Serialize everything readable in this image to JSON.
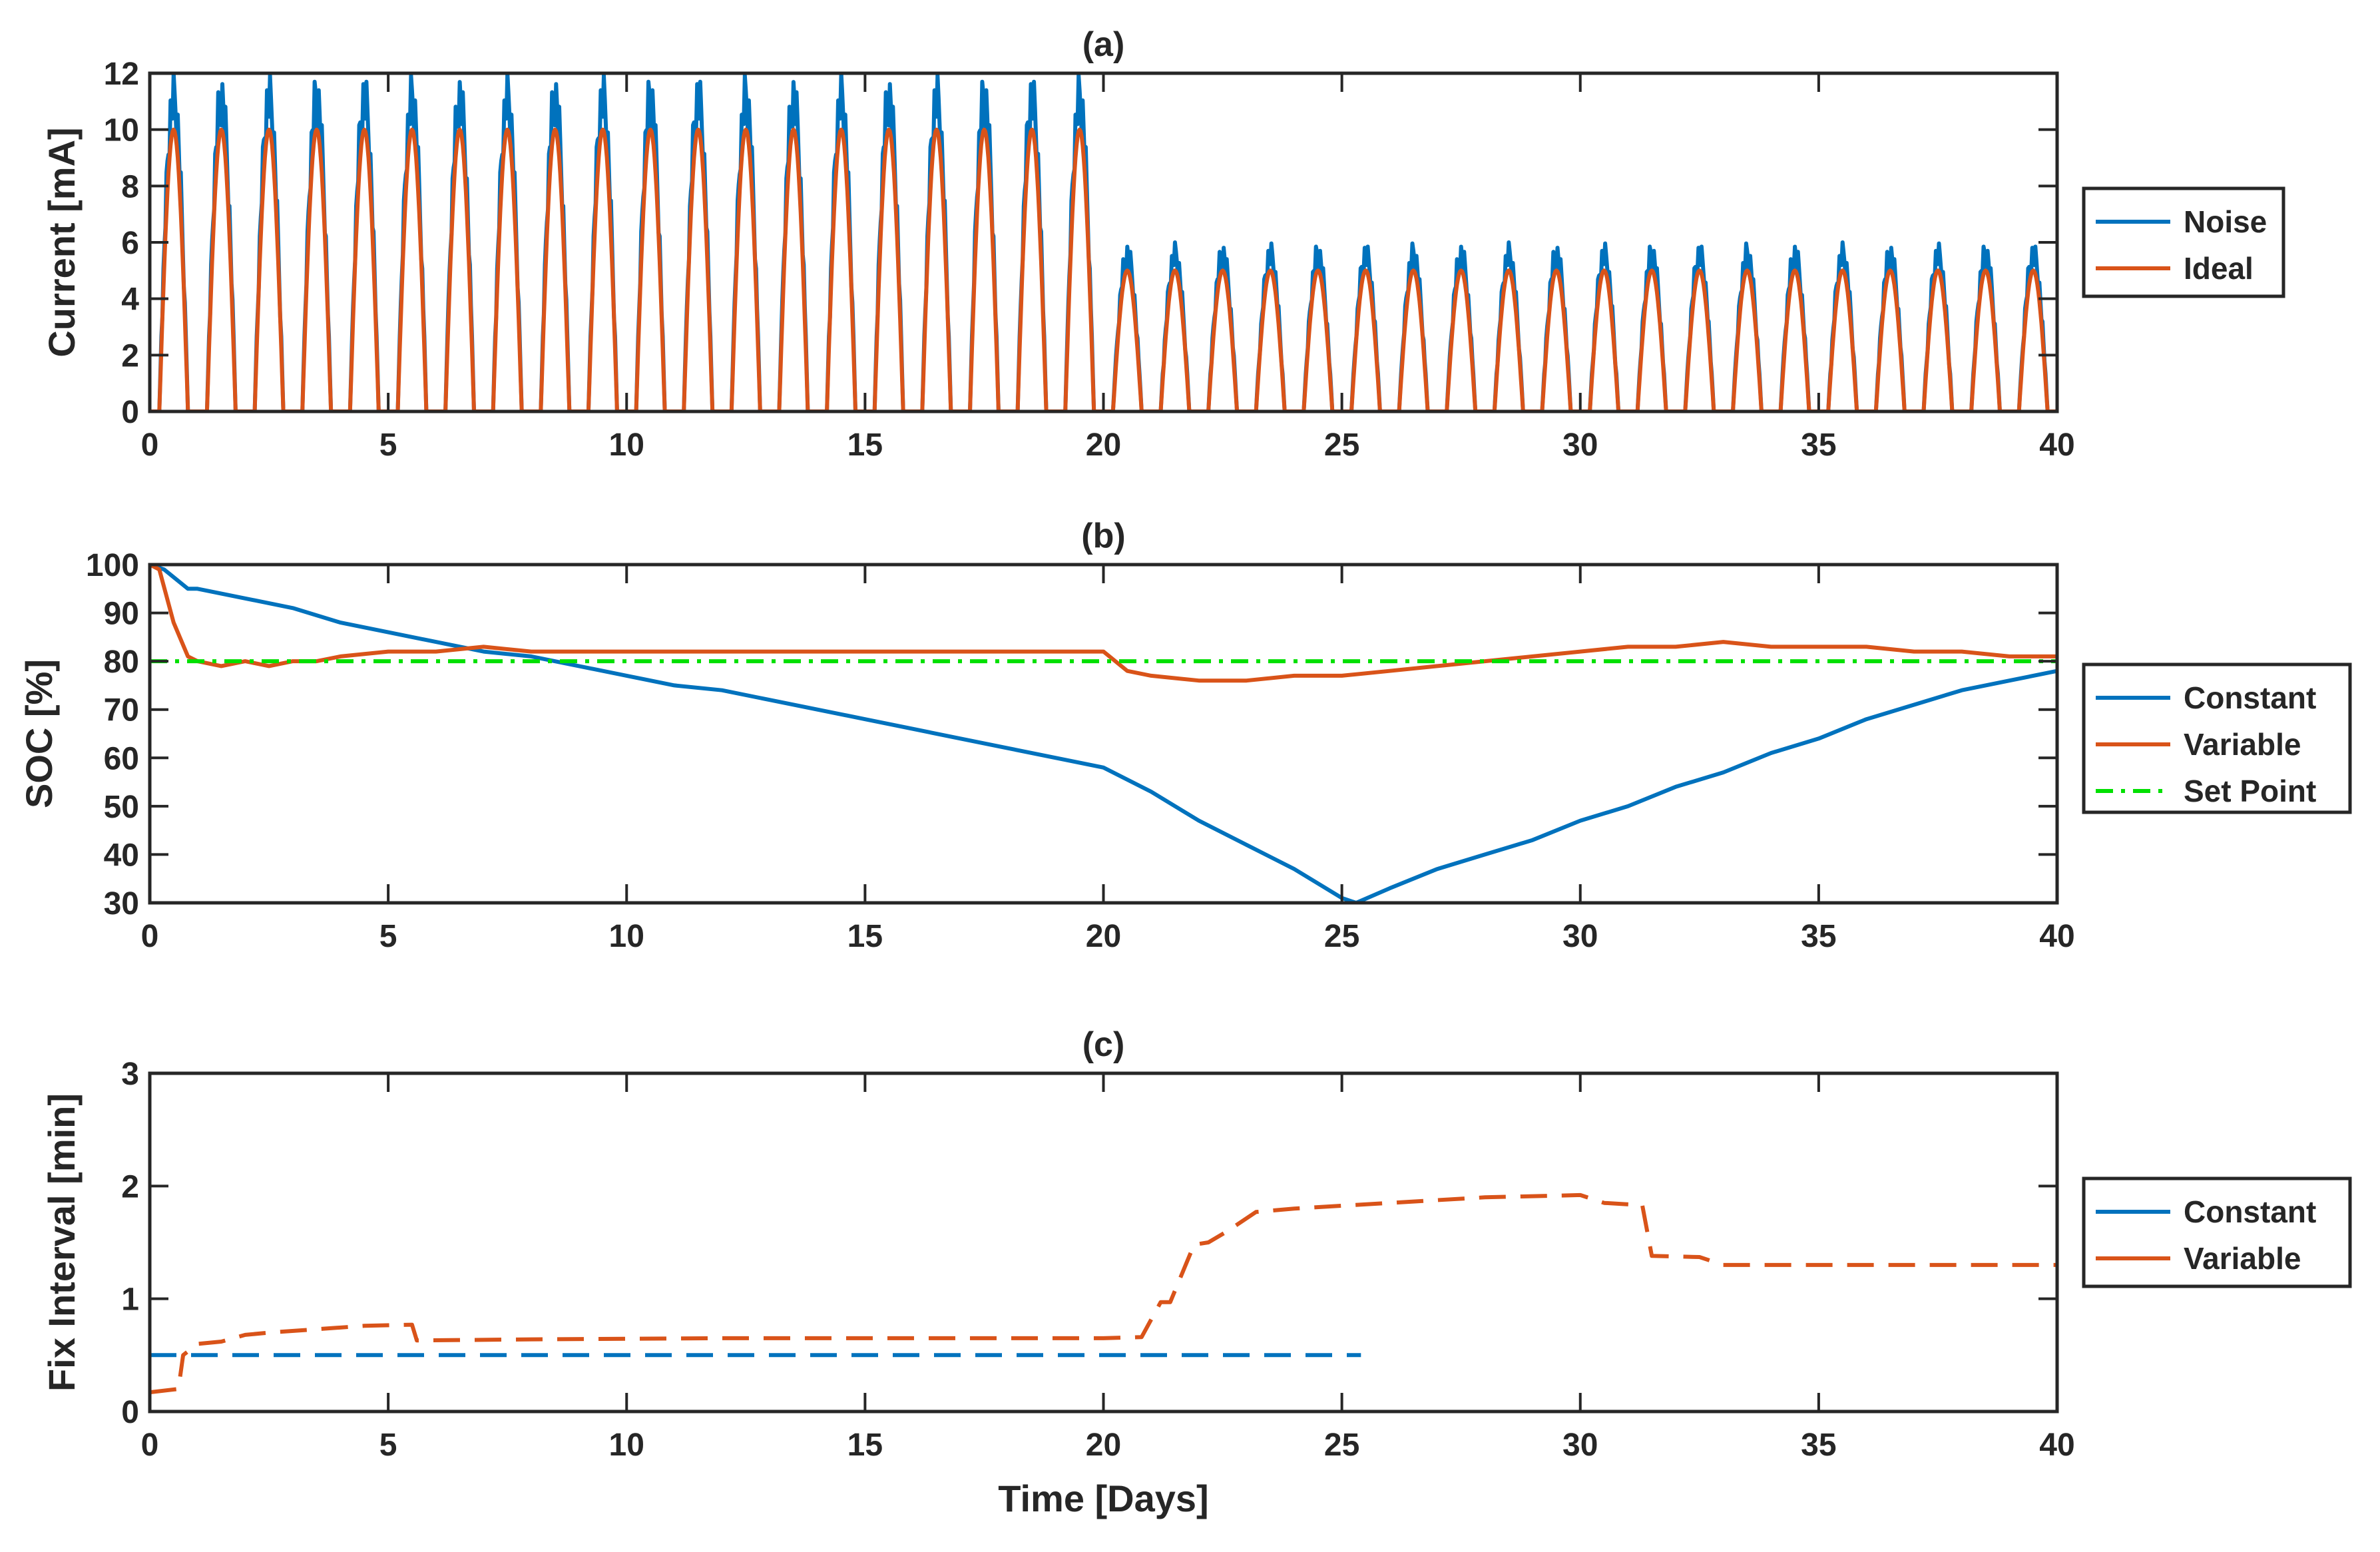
{
  "colors": {
    "blue": "#0072BD",
    "orange": "#D95319",
    "green": "#00E000",
    "axis": "#262626"
  },
  "chart_data": [
    {
      "id": "a",
      "type": "line",
      "title": "(a)",
      "xlabel": "",
      "ylabel": "Current [mA]",
      "xlim": [
        0,
        40
      ],
      "ylim": [
        0,
        12
      ],
      "xticks": [
        0,
        5,
        10,
        15,
        20,
        25,
        30,
        35,
        40
      ],
      "yticks": [
        0,
        2,
        4,
        6,
        8,
        10,
        12
      ],
      "legend": {
        "placement": "outside-right",
        "entries": [
          "Noise",
          "Ideal"
        ]
      },
      "series": [
        {
          "name": "Noise",
          "color": "#0072BD",
          "style": "solid",
          "description": "daily half-sine current pulses with noise",
          "cycles": [
            {
              "from_day": 0,
              "to_day": 20,
              "peak": 12
            },
            {
              "from_day": 20,
              "to_day": 40,
              "peak": 6
            }
          ],
          "active_window": [
            0.2,
            0.8
          ]
        },
        {
          "name": "Ideal",
          "color": "#D95319",
          "style": "solid",
          "description": "daily half-sine current pulses",
          "cycles": [
            {
              "from_day": 0,
              "to_day": 20,
              "peak": 10
            },
            {
              "from_day": 20,
              "to_day": 40,
              "peak": 5
            }
          ],
          "active_window": [
            0.2,
            0.8
          ]
        }
      ]
    },
    {
      "id": "b",
      "type": "line",
      "title": "(b)",
      "xlabel": "",
      "ylabel": "SOC [%]",
      "xlim": [
        0,
        40
      ],
      "ylim": [
        30,
        100
      ],
      "xticks": [
        0,
        5,
        10,
        15,
        20,
        25,
        30,
        35,
        40
      ],
      "yticks": [
        30,
        40,
        50,
        60,
        70,
        80,
        90,
        100
      ],
      "legend": {
        "placement": "outside-right",
        "entries": [
          "Constant",
          "Variable",
          "Set Point"
        ]
      },
      "series": [
        {
          "name": "Constant",
          "color": "#0072BD",
          "style": "solid",
          "x": [
            0,
            0.3,
            0.8,
            1,
            2,
            3,
            4,
            5,
            6,
            7,
            8,
            9,
            10,
            11,
            12,
            13,
            14,
            15,
            16,
            17,
            18,
            19,
            20,
            21,
            22,
            23,
            24,
            25,
            25.3,
            26,
            27,
            28,
            29,
            30,
            31,
            32,
            33,
            34,
            35,
            36,
            37,
            38,
            39,
            40
          ],
          "y": [
            100,
            99,
            95,
            95,
            93,
            91,
            88,
            86,
            84,
            82,
            81,
            79,
            77,
            75,
            74,
            72,
            70,
            68,
            66,
            64,
            62,
            60,
            58,
            53,
            47,
            42,
            37,
            31,
            30,
            33,
            37,
            40,
            43,
            47,
            50,
            54,
            57,
            61,
            64,
            68,
            71,
            74,
            76,
            78
          ]
        },
        {
          "name": "Variable",
          "color": "#D95319",
          "style": "solid",
          "x": [
            0,
            0.2,
            0.5,
            0.8,
            1,
            1.5,
            2,
            2.5,
            3,
            3.5,
            4,
            5,
            6,
            7,
            8,
            9,
            10,
            12,
            14,
            16,
            18,
            20,
            20.5,
            21,
            22,
            23,
            24,
            25,
            26,
            27,
            28,
            29,
            30,
            31,
            32,
            33,
            34,
            35,
            36,
            37,
            38,
            39,
            40
          ],
          "y": [
            100,
            99,
            88,
            81,
            80,
            79,
            80,
            79,
            80,
            80,
            81,
            82,
            82,
            83,
            82,
            82,
            82,
            82,
            82,
            82,
            82,
            82,
            78,
            77,
            76,
            76,
            77,
            77,
            78,
            79,
            80,
            81,
            82,
            83,
            83,
            84,
            83,
            83,
            83,
            82,
            82,
            81,
            81
          ]
        },
        {
          "name": "Set Point",
          "color": "#00E000",
          "style": "dash-dot",
          "x": [
            0,
            40
          ],
          "y": [
            80,
            80
          ]
        }
      ]
    },
    {
      "id": "c",
      "type": "line",
      "title": "(c)",
      "xlabel": "Time [Days]",
      "ylabel": "Fix Interval [min]",
      "xlim": [
        0,
        40
      ],
      "ylim": [
        0,
        3
      ],
      "xticks": [
        0,
        5,
        10,
        15,
        20,
        25,
        30,
        35,
        40
      ],
      "yticks": [
        0,
        1,
        2,
        3
      ],
      "legend": {
        "placement": "outside-right",
        "entries": [
          "Constant",
          "Variable"
        ]
      },
      "series": [
        {
          "name": "Constant",
          "color": "#0072BD",
          "style": "dashed",
          "x": [
            0,
            25.4
          ],
          "y": [
            0.5,
            0.5
          ]
        },
        {
          "name": "Variable",
          "color": "#D95319",
          "style": "dashed",
          "x": [
            0,
            0.6,
            0.7,
            1.0,
            1.5,
            2.0,
            2.5,
            3.5,
            4.5,
            5.5,
            5.6,
            8,
            12,
            16,
            20,
            20.8,
            21.2,
            21.4,
            21.9,
            22.2,
            22.6,
            23.2,
            24,
            26,
            28,
            30,
            30.5,
            31.3,
            31.5,
            32.5,
            33,
            40
          ],
          "y": [
            0.17,
            0.2,
            0.5,
            0.6,
            0.62,
            0.68,
            0.7,
            0.73,
            0.76,
            0.77,
            0.63,
            0.64,
            0.65,
            0.65,
            0.65,
            0.66,
            0.97,
            0.97,
            1.48,
            1.5,
            1.6,
            1.77,
            1.8,
            1.85,
            1.9,
            1.92,
            1.85,
            1.83,
            1.38,
            1.37,
            1.3,
            1.3
          ]
        }
      ]
    }
  ]
}
